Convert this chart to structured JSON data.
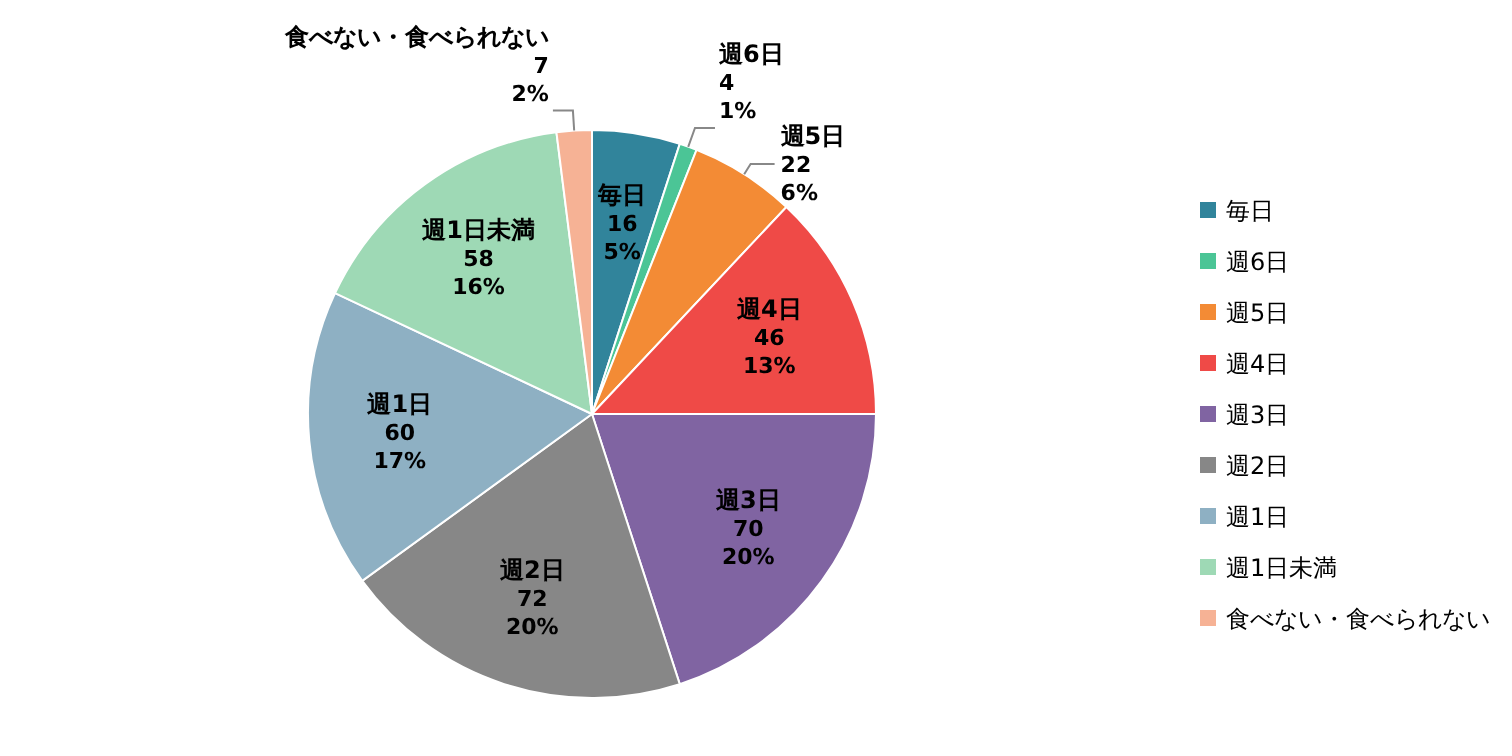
{
  "chart_data": {
    "type": "pie",
    "categories": [
      "毎日",
      "週6日",
      "週5日",
      "週4日",
      "週3日",
      "週2日",
      "週1日",
      "週1日未満",
      "食べない・食べられない"
    ],
    "values": [
      5,
      1,
      6,
      13,
      20,
      20,
      17,
      16,
      2
    ],
    "value_labels": [
      "5%",
      "1%",
      "6%",
      "13%",
      "20%",
      "20%",
      "17%",
      "16%",
      "2%"
    ],
    "annotations": [
      {
        "text": "16",
        "x": "毎日"
      },
      {
        "text": "4",
        "x": "週6日"
      },
      {
        "text": "22",
        "x": "週5日"
      },
      {
        "text": "46",
        "x": "週4日"
      },
      {
        "text": "70",
        "x": "週3日"
      },
      {
        "text": "72",
        "x": "週2日"
      },
      {
        "text": "60",
        "x": "週1日"
      },
      {
        "text": "58",
        "x": "週1日未満"
      },
      {
        "text": "7",
        "x": "食べない・食べられない"
      }
    ],
    "colors": [
      "#31849b",
      "#4bc596",
      "#f38b35",
      "#ef4a47",
      "#8064a2",
      "#878787",
      "#8eb0c3",
      "#9ed9b5",
      "#f6b295"
    ],
    "legend": "right"
  }
}
